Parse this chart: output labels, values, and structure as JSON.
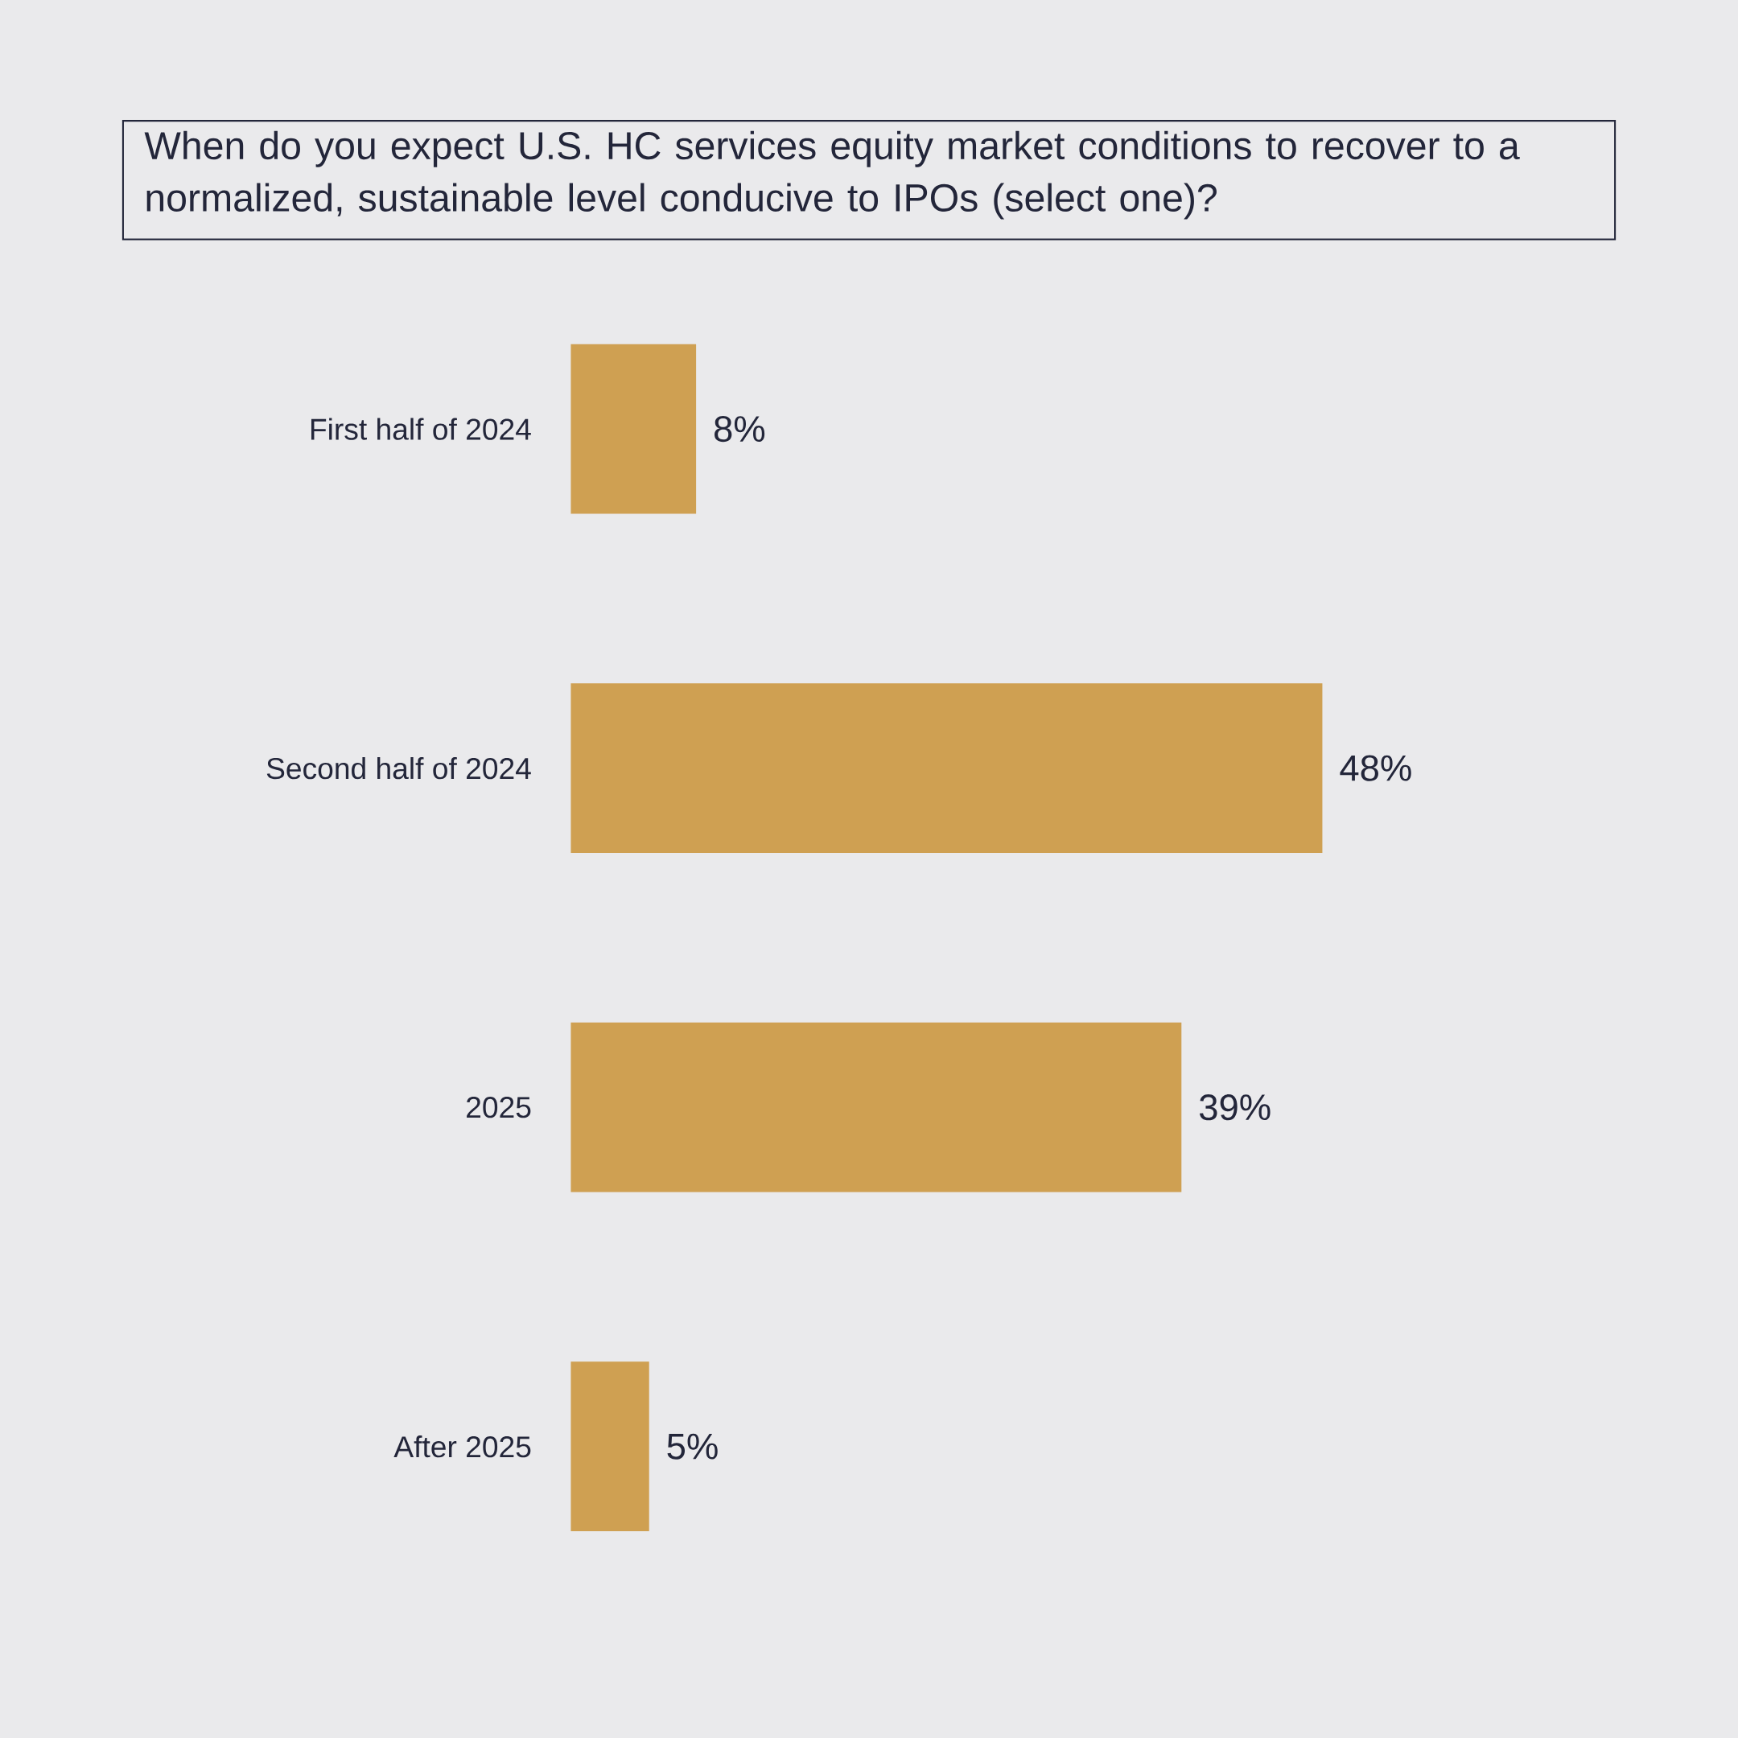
{
  "chart_data": {
    "type": "bar",
    "orientation": "horizontal",
    "title": "When do you expect U.S. HC services equity market conditions to recover to a normalized, sustainable level conducive to IPOs (select one)?",
    "categories": [
      "First half of 2024",
      "Second half of 2024",
      "2025",
      "After 2025"
    ],
    "values": [
      8,
      48,
      39,
      5
    ],
    "value_labels": [
      "8%",
      "48%",
      "39%",
      "5%"
    ],
    "color": "#cfa052"
  }
}
